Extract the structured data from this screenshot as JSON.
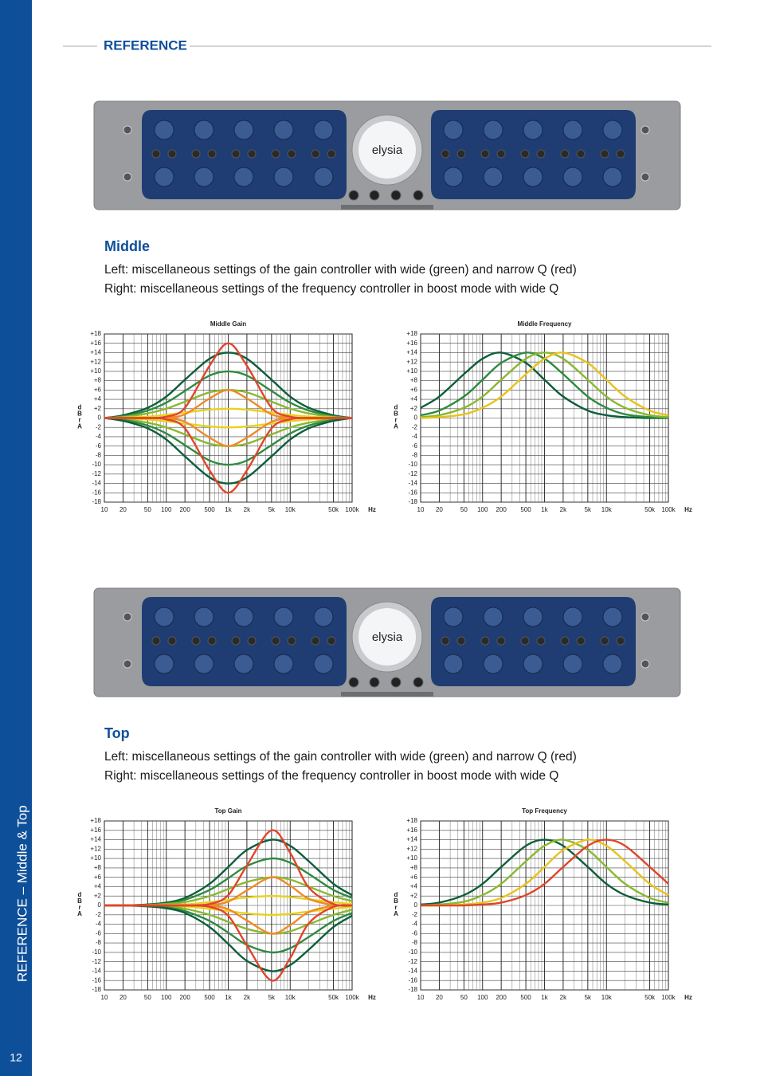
{
  "sidebar": {
    "title": "REFERENCE – Middle & Top",
    "page": "12"
  },
  "header": "REFERENCE",
  "device": {
    "logo": "elysia"
  },
  "sections": [
    {
      "heading": "Middle",
      "lines": [
        "Left: miscellaneous settings of the gain controller with wide (green) and narrow Q (red)",
        "Right: miscellaneous settings of the frequency controller in boost mode with wide Q"
      ]
    },
    {
      "heading": "Top",
      "lines": [
        "Left: miscellaneous settings of the gain controller with wide (green) and narrow Q (red)",
        "Right: miscellaneous settings of the frequency controller in boost mode with wide Q"
      ]
    }
  ],
  "chart_data": [
    {
      "type": "line",
      "title": "Middle Gain",
      "ylabel": "dBrA",
      "xlabel": "Hz",
      "log_x": true,
      "grid": true,
      "xlim": [
        10,
        100000
      ],
      "ylim": [
        -18,
        18
      ],
      "xticks": [
        10,
        20,
        50,
        100,
        200,
        500,
        {
          "value": 1000,
          "label": "1k"
        },
        {
          "value": 2000,
          "label": "2k"
        },
        {
          "value": 5000,
          "label": "5k"
        },
        {
          "value": 10000,
          "label": "10k"
        },
        {
          "value": 50000,
          "label": "50k"
        },
        {
          "value": 100000,
          "label": "100k"
        }
      ],
      "yticks": [
        {
          "value": 18,
          "label": "+18"
        },
        {
          "value": 16,
          "label": "+16"
        },
        {
          "value": 14,
          "label": "+14"
        },
        {
          "value": 12,
          "label": "+12"
        },
        {
          "value": 10,
          "label": "+10"
        },
        {
          "value": 8,
          "label": "+8"
        },
        {
          "value": 6,
          "label": "+6"
        },
        {
          "value": 4,
          "label": "+4"
        },
        {
          "value": 2,
          "label": "+2"
        },
        0,
        -2,
        -4,
        -6,
        -8,
        -10,
        -12,
        -14,
        -16,
        -18
      ],
      "x": [
        10,
        20,
        50,
        100,
        200,
        500,
        1000,
        2000,
        5000,
        10000,
        20000,
        50000,
        100000
      ],
      "series": [
        {
          "color": "#0d5e3a",
          "values": [
            0,
            0.6,
            2.2,
            4.6,
            8.2,
            12.7,
            14,
            12.7,
            8.2,
            4.6,
            2.2,
            0.6,
            0
          ]
        },
        {
          "color": "#2e8b3e",
          "values": [
            0,
            0.4,
            1.6,
            3.3,
            5.8,
            9.1,
            10,
            9.1,
            5.8,
            3.3,
            1.6,
            0.4,
            0
          ]
        },
        {
          "color": "#8ab82e",
          "values": [
            0,
            0.2,
            1,
            2,
            3.5,
            5.5,
            6,
            5.5,
            3.5,
            2,
            1,
            0.2,
            0
          ]
        },
        {
          "color": "#e8d21c",
          "values": [
            0,
            0.1,
            0.3,
            0.7,
            1.2,
            1.8,
            2,
            1.8,
            1.2,
            0.7,
            0.3,
            0.1,
            0
          ]
        },
        {
          "color": "#e8d21c",
          "values": [
            0,
            -0.1,
            -0.3,
            -0.7,
            -1.2,
            -1.8,
            -2,
            -1.8,
            -1.2,
            -0.7,
            -0.3,
            -0.1,
            0
          ]
        },
        {
          "color": "#8ab82e",
          "values": [
            0,
            -0.2,
            -1,
            -2,
            -3.5,
            -5.5,
            -6,
            -5.5,
            -3.5,
            -2,
            -1,
            -0.2,
            0
          ]
        },
        {
          "color": "#2e8b3e",
          "values": [
            0,
            -0.4,
            -1.6,
            -3.3,
            -5.8,
            -9.1,
            -10,
            -9.1,
            -5.8,
            -3.3,
            -1.6,
            -0.4,
            0
          ]
        },
        {
          "color": "#0d5e3a",
          "values": [
            0,
            -0.6,
            -2.2,
            -4.6,
            -8.2,
            -12.7,
            -14,
            -12.7,
            -8.2,
            -4.6,
            -2.2,
            -0.6,
            0
          ]
        },
        {
          "color": "#f08a24",
          "values": [
            0,
            0,
            0,
            0.1,
            0.8,
            4.2,
            6,
            4.2,
            0.8,
            0.1,
            0,
            0,
            0
          ]
        },
        {
          "color": "#f08a24",
          "values": [
            0,
            0,
            0,
            -0.1,
            -0.8,
            -4.2,
            -6,
            -4.2,
            -0.8,
            -0.1,
            0,
            0,
            0
          ]
        },
        {
          "color": "#e0452a",
          "values": [
            0,
            0,
            0,
            0.3,
            2.2,
            11.2,
            16,
            11.2,
            2.2,
            0.3,
            0,
            0,
            0
          ]
        },
        {
          "color": "#e0452a",
          "values": [
            0,
            0,
            0,
            -0.3,
            -2.2,
            -11.2,
            -16,
            -11.2,
            -2.2,
            -0.3,
            0,
            0,
            0
          ]
        }
      ]
    },
    {
      "type": "line",
      "title": "Middle Frequency",
      "ylabel": "dBrA",
      "xlabel": "Hz",
      "log_x": true,
      "grid": true,
      "xlim": [
        10,
        100000
      ],
      "ylim": [
        -18,
        18
      ],
      "xticks": [
        10,
        20,
        50,
        100,
        200,
        500,
        {
          "value": 1000,
          "label": "1k"
        },
        {
          "value": 2000,
          "label": "2k"
        },
        {
          "value": 5000,
          "label": "5k"
        },
        {
          "value": 10000,
          "label": "10k"
        },
        {
          "value": 50000,
          "label": "50k"
        },
        {
          "value": 100000,
          "label": "100k"
        }
      ],
      "yticks": [
        {
          "value": 18,
          "label": "+18"
        },
        {
          "value": 16,
          "label": "+16"
        },
        {
          "value": 14,
          "label": "+14"
        },
        {
          "value": 12,
          "label": "+12"
        },
        {
          "value": 10,
          "label": "+10"
        },
        {
          "value": 8,
          "label": "+8"
        },
        {
          "value": 6,
          "label": "+6"
        },
        {
          "value": 4,
          "label": "+4"
        },
        {
          "value": 2,
          "label": "+2"
        },
        0,
        -2,
        -4,
        -6,
        -8,
        -10,
        -12,
        -14,
        -16,
        -18
      ],
      "x": [
        10,
        20,
        50,
        100,
        200,
        500,
        1000,
        2000,
        5000,
        10000,
        20000,
        50000,
        100000
      ],
      "series": [
        {
          "color": "#0d5e3a",
          "values": [
            2.2,
            4.6,
            9.4,
            12.7,
            14,
            11.8,
            8.2,
            4.6,
            1.6,
            0.6,
            0.2,
            0,
            0
          ]
        },
        {
          "color": "#2e8b3e",
          "values": [
            0.6,
            1.6,
            4.6,
            8.2,
            11.8,
            14,
            12.7,
            9.4,
            4.6,
            2.2,
            0.8,
            0.2,
            0
          ]
        },
        {
          "color": "#8ab82e",
          "values": [
            0.2,
            0.6,
            2.2,
            4.6,
            8.2,
            12.7,
            14,
            12.7,
            8.2,
            4.6,
            2.2,
            0.6,
            0.2
          ]
        },
        {
          "color": "#e8c21c",
          "values": [
            0,
            0.2,
            0.8,
            2.2,
            4.6,
            9.4,
            12.7,
            14,
            11.8,
            8.2,
            4.6,
            1.6,
            0.6
          ]
        }
      ]
    },
    {
      "type": "line",
      "title": "Top Gain",
      "ylabel": "dBrA",
      "xlabel": "Hz",
      "log_x": true,
      "grid": true,
      "xlim": [
        10,
        100000
      ],
      "ylim": [
        -18,
        18
      ],
      "xticks": [
        10,
        20,
        50,
        100,
        200,
        500,
        {
          "value": 1000,
          "label": "1k"
        },
        {
          "value": 2000,
          "label": "2k"
        },
        {
          "value": 5000,
          "label": "5k"
        },
        {
          "value": 10000,
          "label": "10k"
        },
        {
          "value": 50000,
          "label": "50k"
        },
        {
          "value": 100000,
          "label": "100k"
        }
      ],
      "yticks": [
        {
          "value": 18,
          "label": "+18"
        },
        {
          "value": 16,
          "label": "+16"
        },
        {
          "value": 14,
          "label": "+14"
        },
        {
          "value": 12,
          "label": "+12"
        },
        {
          "value": 10,
          "label": "+10"
        },
        {
          "value": 8,
          "label": "+8"
        },
        {
          "value": 6,
          "label": "+6"
        },
        {
          "value": 4,
          "label": "+4"
        },
        {
          "value": 2,
          "label": "+2"
        },
        0,
        -2,
        -4,
        -6,
        -8,
        -10,
        -12,
        -14,
        -16,
        -18
      ],
      "x": [
        10,
        20,
        50,
        100,
        200,
        500,
        1000,
        2000,
        5000,
        10000,
        20000,
        50000,
        100000
      ],
      "series": [
        {
          "color": "#0d5e3a",
          "values": [
            0,
            0,
            0.2,
            0.6,
            1.6,
            4.6,
            8.2,
            11.8,
            14,
            12.7,
            9.4,
            4.6,
            2.2
          ]
        },
        {
          "color": "#2e8b3e",
          "values": [
            0,
            0,
            0.1,
            0.4,
            1.2,
            3.3,
            5.8,
            8.4,
            10,
            9.1,
            6.7,
            3.3,
            1.6
          ]
        },
        {
          "color": "#8ab82e",
          "values": [
            0,
            0,
            0.1,
            0.3,
            0.7,
            2,
            3.5,
            5,
            6,
            5.5,
            4,
            2,
            0.9
          ]
        },
        {
          "color": "#e8d21c",
          "values": [
            0,
            0,
            0,
            0.1,
            0.2,
            0.7,
            1.2,
            1.7,
            2,
            1.8,
            1.3,
            0.7,
            0.3
          ]
        },
        {
          "color": "#e8d21c",
          "values": [
            0,
            0,
            0,
            -0.1,
            -0.2,
            -0.7,
            -1.2,
            -1.7,
            -2,
            -1.8,
            -1.3,
            -0.7,
            -0.3
          ]
        },
        {
          "color": "#8ab82e",
          "values": [
            0,
            0,
            -0.1,
            -0.3,
            -0.7,
            -2,
            -3.5,
            -5,
            -6,
            -5.5,
            -4,
            -2,
            -0.9
          ]
        },
        {
          "color": "#2e8b3e",
          "values": [
            0,
            0,
            -0.1,
            -0.4,
            -1.2,
            -3.3,
            -5.8,
            -8.4,
            -10,
            -9.1,
            -6.7,
            -3.3,
            -1.6
          ]
        },
        {
          "color": "#0d5e3a",
          "values": [
            0,
            0,
            -0.2,
            -0.6,
            -1.6,
            -4.6,
            -8.2,
            -11.8,
            -14,
            -12.7,
            -9.4,
            -4.6,
            -2.2
          ]
        },
        {
          "color": "#f08a24",
          "values": [
            0,
            0,
            0,
            0,
            0,
            0.1,
            0.8,
            3.2,
            6,
            4.2,
            1.4,
            0.1,
            0
          ]
        },
        {
          "color": "#f08a24",
          "values": [
            0,
            0,
            0,
            0,
            0,
            -0.1,
            -0.8,
            -3.2,
            -6,
            -4.2,
            -1.4,
            -0.1,
            0
          ]
        },
        {
          "color": "#e0452a",
          "values": [
            0,
            0,
            0,
            0,
            0,
            0.3,
            2.2,
            8.5,
            16,
            11.2,
            3.8,
            0.3,
            0
          ]
        },
        {
          "color": "#e0452a",
          "values": [
            0,
            0,
            0,
            0,
            0,
            -0.3,
            -2.2,
            -8.5,
            -16,
            -11.2,
            -3.8,
            -0.3,
            0
          ]
        }
      ]
    },
    {
      "type": "line",
      "title": "Top Frequency",
      "ylabel": "dBrA",
      "xlabel": "Hz",
      "log_x": true,
      "grid": true,
      "xlim": [
        10,
        100000
      ],
      "ylim": [
        -18,
        18
      ],
      "xticks": [
        10,
        20,
        50,
        100,
        200,
        500,
        {
          "value": 1000,
          "label": "1k"
        },
        {
          "value": 2000,
          "label": "2k"
        },
        {
          "value": 5000,
          "label": "5k"
        },
        {
          "value": 10000,
          "label": "10k"
        },
        {
          "value": 50000,
          "label": "50k"
        },
        {
          "value": 100000,
          "label": "100k"
        }
      ],
      "yticks": [
        {
          "value": 18,
          "label": "+18"
        },
        {
          "value": 16,
          "label": "+16"
        },
        {
          "value": 14,
          "label": "+14"
        },
        {
          "value": 12,
          "label": "+12"
        },
        {
          "value": 10,
          "label": "+10"
        },
        {
          "value": 8,
          "label": "+8"
        },
        {
          "value": 6,
          "label": "+6"
        },
        {
          "value": 4,
          "label": "+4"
        },
        {
          "value": 2,
          "label": "+2"
        },
        0,
        -2,
        -4,
        -6,
        -8,
        -10,
        -12,
        -14,
        -16,
        -18
      ],
      "x": [
        10,
        20,
        50,
        100,
        200,
        500,
        1000,
        2000,
        5000,
        10000,
        20000,
        50000,
        100000
      ],
      "series": [
        {
          "color": "#0d5e3a",
          "values": [
            0.2,
            0.6,
            2.2,
            4.6,
            8.2,
            12.7,
            14,
            12.7,
            8.2,
            4.6,
            2.2,
            0.6,
            0.2
          ]
        },
        {
          "color": "#8ab82e",
          "values": [
            0,
            0.2,
            0.8,
            2.2,
            4.6,
            9.4,
            12.7,
            14,
            11.8,
            8.2,
            4.6,
            1.6,
            0.6
          ]
        },
        {
          "color": "#e8c21c",
          "values": [
            0,
            0,
            0.2,
            0.6,
            1.6,
            4.6,
            8.2,
            11.8,
            14,
            12.7,
            9.4,
            4.6,
            2.2
          ]
        },
        {
          "color": "#e0452a",
          "values": [
            0,
            0,
            0,
            0.2,
            0.6,
            2.2,
            4.6,
            8.2,
            12.7,
            14,
            12.7,
            8.2,
            4.6
          ]
        }
      ]
    }
  ]
}
